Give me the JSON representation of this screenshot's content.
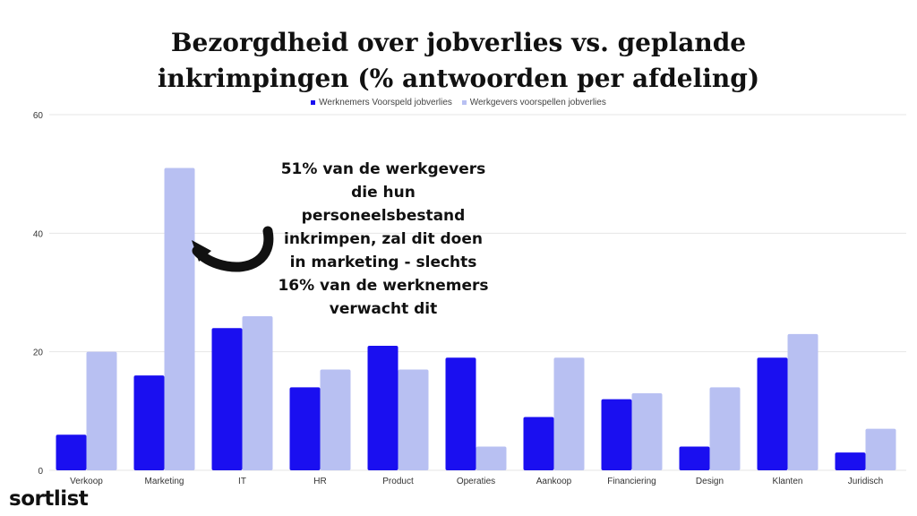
{
  "chart_data": {
    "type": "bar",
    "title_lines": [
      "Bezorgdheid over jobverlies vs. geplande",
      "inkrimpingen (% antwoorden per afdeling)"
    ],
    "categories": [
      "Verkoop",
      "Marketing",
      "IT",
      "HR",
      "Product",
      "Operaties",
      "Aankoop",
      "Financiering",
      "Design",
      "Klanten",
      "Juridisch"
    ],
    "series": [
      {
        "name": "Werknemers Voorspeld jobverlies",
        "color": "#1a0ff0",
        "values": [
          6,
          16,
          24,
          14,
          21,
          19,
          9,
          12,
          4,
          19,
          3
        ]
      },
      {
        "name": "Werkgevers voorspellen jobverlies",
        "color": "#b8c0f2",
        "values": [
          20,
          51,
          26,
          17,
          17,
          4,
          19,
          13,
          14,
          23,
          7
        ]
      }
    ],
    "ylim": [
      0,
      60
    ],
    "yticks": [
      0,
      20,
      40,
      60
    ],
    "grid": true,
    "legend_position": "top-center",
    "annotation": "51% van de werkgevers die hun personeelsbestand inkrimpen, zal dit doen in marketing - slechts 16% van de werknemers verwacht dit"
  },
  "brand": {
    "logo_text": "sortlist"
  }
}
